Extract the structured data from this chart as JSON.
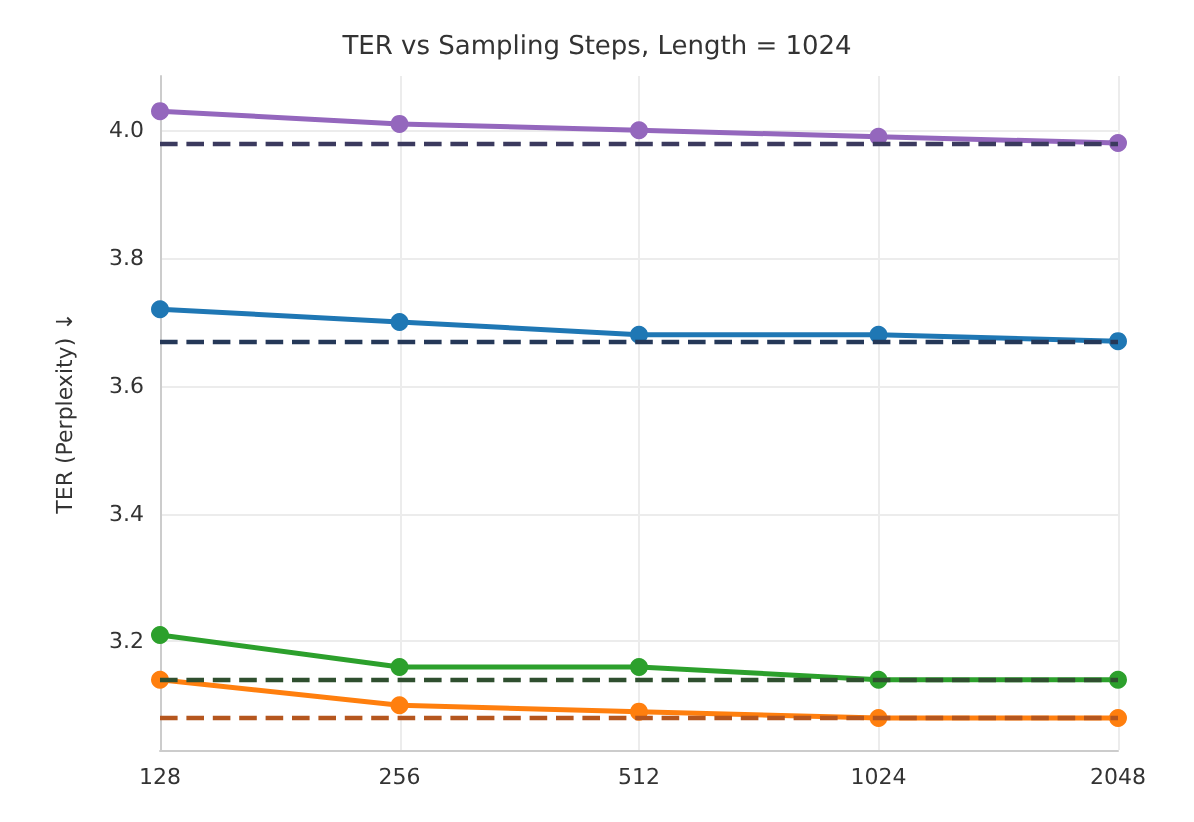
{
  "chart_data": {
    "type": "line",
    "title": "TER vs Sampling Steps, Length = 1024",
    "ylabel": "TER (Perplexity) ↓",
    "categories": [
      "128",
      "256",
      "512",
      "1024",
      "2048"
    ],
    "series": [
      {
        "color": "#9467bd",
        "values": [
          4.03,
          4.01,
          4.0,
          3.99,
          3.98
        ]
      },
      {
        "color": "#1f77b4",
        "values": [
          3.72,
          3.7,
          3.68,
          3.68,
          3.67
        ]
      },
      {
        "color": "#2ca02c",
        "values": [
          3.21,
          3.16,
          3.16,
          3.14,
          3.14
        ]
      },
      {
        "color": "#ff7f0e",
        "values": [
          3.14,
          3.1,
          3.09,
          3.08,
          3.08
        ]
      }
    ],
    "ref_lines": [
      {
        "axis": "y",
        "value": 3.98,
        "color": "#3b3a5e",
        "line_style": "dashed"
      },
      {
        "axis": "y",
        "value": 3.67,
        "color": "#253858",
        "line_style": "dashed"
      },
      {
        "axis": "y",
        "value": 3.14,
        "color": "#2f4f2f",
        "line_style": "dashed"
      },
      {
        "axis": "y",
        "value": 3.08,
        "color": "#b5561e",
        "line_style": "dashed"
      }
    ],
    "ylim": [
      3.03,
      4.085
    ],
    "yticks": [
      3.2,
      3.4,
      3.6,
      3.8,
      {
        "value": 4,
        "label": "4.0"
      }
    ],
    "grid": true,
    "marker": "circle",
    "line_style": "solid"
  }
}
